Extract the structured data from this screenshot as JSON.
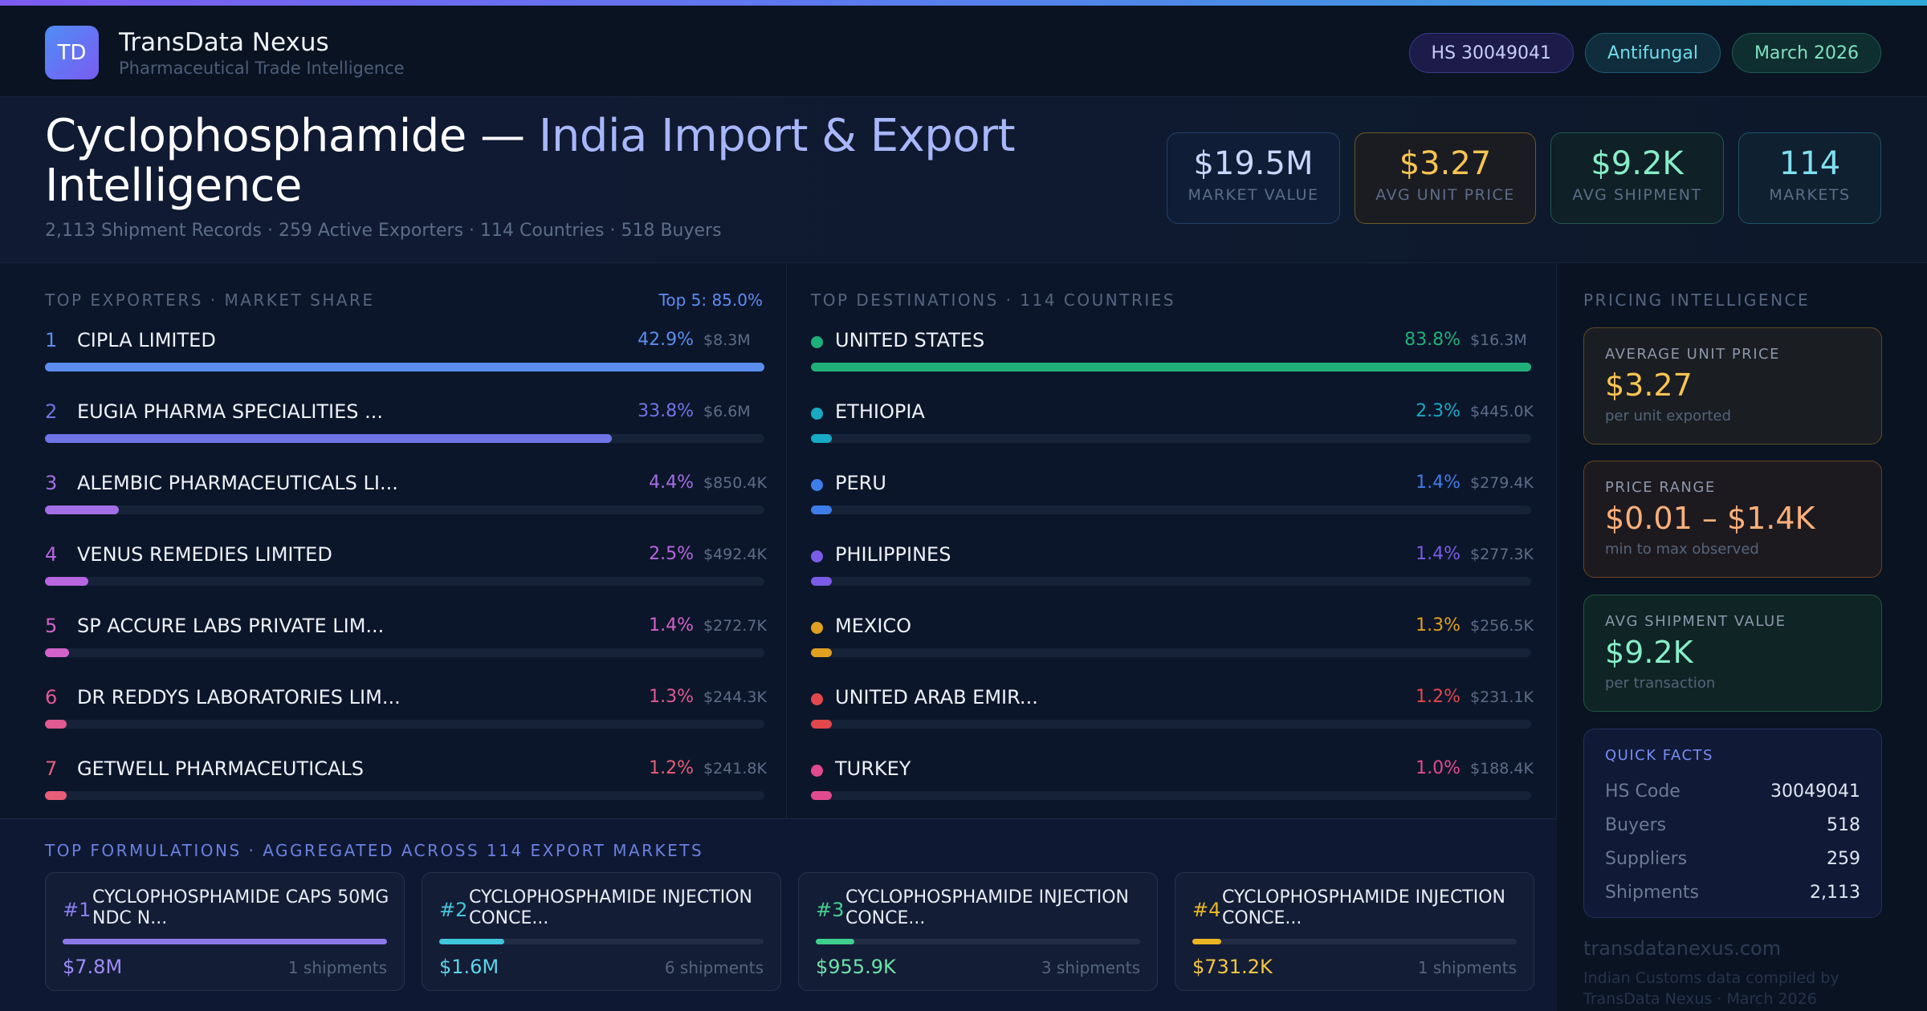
{
  "brand": {
    "logo": "TD",
    "name": "TransData Nexus",
    "tagline": "Pharmaceutical Trade Intelligence"
  },
  "chips": {
    "hs": "HS 30049041",
    "category": "Antifungal",
    "date": "March 2026"
  },
  "hero": {
    "title_main": "Cyclophosphamide — ",
    "title_accent": "India Import & Export",
    "title_tail": "Intelligence",
    "meta": "2,113 Shipment Records · 259 Active Exporters · 114 Countries · 518 Buyers"
  },
  "kpis": [
    {
      "value": "$19.5M",
      "label": "MARKET VALUE"
    },
    {
      "value": "$3.27",
      "label": "AVG UNIT PRICE"
    },
    {
      "value": "$9.2K",
      "label": "AVG SHIPMENT"
    },
    {
      "value": "114",
      "label": "MARKETS"
    }
  ],
  "exporters": {
    "title": "TOP EXPORTERS · MARKET SHARE",
    "summary": "Top 5: 85.0%",
    "rows": [
      {
        "rank": "1",
        "name": "CIPLA LIMITED",
        "pct": "42.9%",
        "amount": "$8.3M",
        "share": 1.0,
        "color": "#5b8def"
      },
      {
        "rank": "2",
        "name": "EUGIA PHARMA SPECIALITIES ...",
        "pct": "33.8%",
        "amount": "$6.6M",
        "share": 0.788,
        "color": "#6f74e6"
      },
      {
        "rank": "3",
        "name": "ALEMBIC PHARMACEUTICALS LI...",
        "pct": "4.4%",
        "amount": "$850.4K",
        "share": 0.103,
        "color": "#a46ee6"
      },
      {
        "rank": "4",
        "name": "VENUS REMEDIES LIMITED",
        "pct": "2.5%",
        "amount": "$492.4K",
        "share": 0.06,
        "color": "#b765e0"
      },
      {
        "rank": "5",
        "name": "SP ACCURE LABS PRIVATE  LIM...",
        "pct": "1.4%",
        "amount": "$272.7K",
        "share": 0.033,
        "color": "#d262c9"
      },
      {
        "rank": "6",
        "name": "DR REDDYS LABORATORIES LIM...",
        "pct": "1.3%",
        "amount": "$244.3K",
        "share": 0.03,
        "color": "#e05a92"
      },
      {
        "rank": "7",
        "name": "GETWELL PHARMACEUTICALS",
        "pct": "1.2%",
        "amount": "$241.8K",
        "share": 0.03,
        "color": "#e85d78"
      }
    ]
  },
  "destinations": {
    "title": "TOP DESTINATIONS · 114 COUNTRIES",
    "rows": [
      {
        "name": "UNITED STATES",
        "pct": "83.8%",
        "amount": "$16.3M",
        "share": 1.0,
        "color": "#1fb07a"
      },
      {
        "name": "ETHIOPIA",
        "pct": "2.3%",
        "amount": "$445.0K",
        "share": 0.028,
        "color": "#18a9c4"
      },
      {
        "name": "PERU",
        "pct": "1.4%",
        "amount": "$279.4K",
        "share": 0.028,
        "color": "#3d7de8"
      },
      {
        "name": "PHILIPPINES",
        "pct": "1.4%",
        "amount": "$277.3K",
        "share": 0.028,
        "color": "#7a5ce6"
      },
      {
        "name": "MEXICO",
        "pct": "1.3%",
        "amount": "$256.5K",
        "share": 0.028,
        "color": "#e0a020"
      },
      {
        "name": "UNITED ARAB EMIR...",
        "pct": "1.2%",
        "amount": "$231.1K",
        "share": 0.028,
        "color": "#e2474c"
      },
      {
        "name": "TURKEY",
        "pct": "1.0%",
        "amount": "$188.4K",
        "share": 0.028,
        "color": "#e24a8f"
      }
    ]
  },
  "pricing": {
    "title": "PRICING INTELLIGENCE",
    "avg_unit": {
      "title": "AVERAGE UNIT PRICE",
      "value": "$3.27",
      "sub": "per unit exported"
    },
    "range": {
      "title": "PRICE RANGE",
      "value": "$0.01 – $1.4K",
      "sub": "min to max observed"
    },
    "avg_shipment": {
      "title": "AVG SHIPMENT VALUE",
      "value": "$9.2K",
      "sub": "per transaction"
    },
    "facts": {
      "title": "QUICK FACTS",
      "rows": [
        {
          "label": "HS Code",
          "value": "30049041"
        },
        {
          "label": "Buyers",
          "value": "518"
        },
        {
          "label": "Suppliers",
          "value": "259"
        },
        {
          "label": "Shipments",
          "value": "2,113"
        }
      ]
    },
    "footer_site": "transdatanexus.com",
    "footer_note": "Indian Customs data compiled by TransData Nexus · March 2026"
  },
  "formulations": {
    "title": "TOP FORMULATIONS · AGGREGATED ACROSS 114 EXPORT MARKETS",
    "cards": [
      {
        "rank": "#1",
        "name": "CYCLOPHOSPHAMIDE CAPS 50MG NDC N...",
        "value": "$7.8M",
        "shipments": "1 shipments",
        "share": 1.0,
        "color": "#8c78e8",
        "rank_color": "#8c7cf0",
        "value_color": "#9e8cf5"
      },
      {
        "rank": "#2",
        "name": "CYCLOPHOSPHAMIDE INJECTION CONCE...",
        "value": "$1.6M",
        "shipments": "6 shipments",
        "share": 0.2,
        "color": "#3fc6dc",
        "rank_color": "#46c5dc",
        "value_color": "#5fd4e8"
      },
      {
        "rank": "#3",
        "name": "CYCLOPHOSPHAMIDE INJECTION CONCE...",
        "value": "$955.9K",
        "shipments": "3 shipments",
        "share": 0.12,
        "color": "#3fcf8e",
        "rank_color": "#48d090",
        "value_color": "#6fe3a8"
      },
      {
        "rank": "#4",
        "name": "CYCLOPHOSPHAMIDE INJECTION CONCE...",
        "value": "$731.2K",
        "shipments": "1 shipments",
        "share": 0.09,
        "color": "#e9b522",
        "rank_color": "#e9b522",
        "value_color": "#f5c642"
      }
    ]
  }
}
